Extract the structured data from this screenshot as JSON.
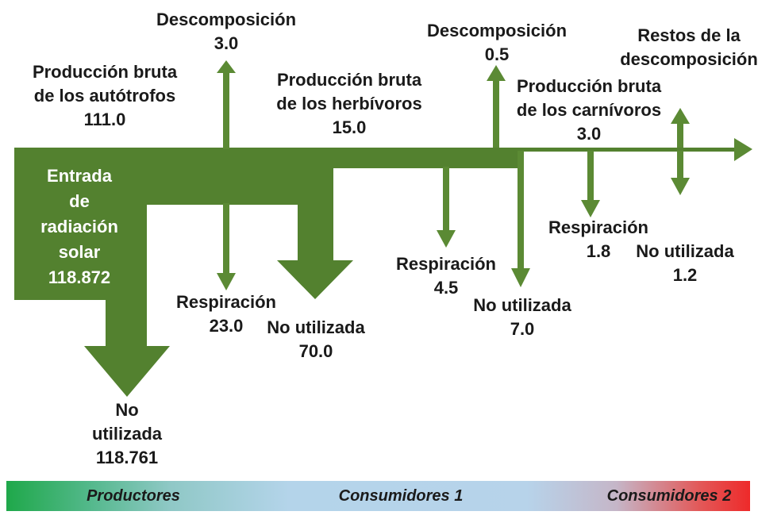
{
  "colors": {
    "flow": "#53812f",
    "arrow": "#5b8a34",
    "text": "#1a1a1a",
    "inner_text": "#ffffff"
  },
  "source": {
    "line1": "Entrada",
    "line2": "de",
    "line3": "radiación",
    "line4": "solar",
    "value": "118.872"
  },
  "producers": {
    "gross_line1": "Producción bruta",
    "gross_line2": "de los autótrofos",
    "gross_value": "111.0",
    "unused_line1": "No",
    "unused_line2": "utilizada",
    "unused_value": "118.761",
    "decomp_label": "Descomposición",
    "decomp_value": "3.0",
    "resp_label": "Respiración",
    "resp_value": "23.0",
    "notused_label": "No utilizada",
    "notused_value": "70.0"
  },
  "herbivores": {
    "gross_line1": "Producción bruta",
    "gross_line2": "de los herbívoros",
    "gross_value": "15.0",
    "decomp_label": "Descomposición",
    "decomp_value": "0.5",
    "resp_label": "Respiración",
    "resp_value": "4.5",
    "notused_label": "No utilizada",
    "notused_value": "7.0"
  },
  "carnivores": {
    "gross_line1": "Producción bruta",
    "gross_line2": "de los carnívoros",
    "gross_value": "3.0",
    "resp_label": "Respiración",
    "resp_value": "1.8",
    "notused_label": "No utilizada",
    "notused_value": "1.2",
    "remains_line1": "Restos de la",
    "remains_line2": "descomposición"
  },
  "legend": {
    "producers": "Productores",
    "consumers1": "Consumidores 1",
    "consumers2": "Consumidores 2"
  }
}
